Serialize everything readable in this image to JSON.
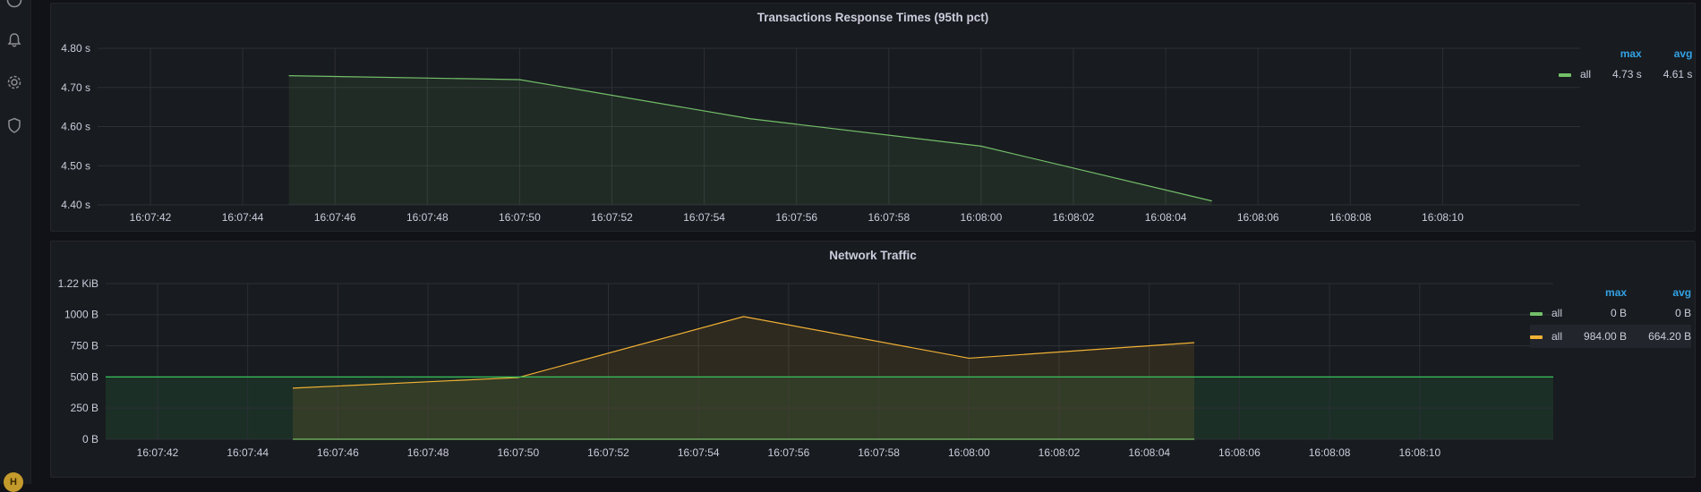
{
  "sidebar": {
    "icons": [
      "help-icon",
      "bell-icon",
      "gear-icon",
      "shield-icon"
    ],
    "avatar_initial": "H"
  },
  "panels": [
    {
      "title": "Transactions Response Times (95th pct)",
      "chart_data": {
        "type": "area",
        "title": "Transactions Response Times (95th pct)",
        "x": [
          "16:07:45",
          "16:07:50",
          "16:07:55",
          "16:08:00",
          "16:08:05"
        ],
        "series": [
          {
            "name": "all",
            "color": "#73bf69",
            "values": [
              4.73,
              4.72,
              4.62,
              4.55,
              4.41
            ]
          }
        ],
        "x_ticks": [
          "16:07:42",
          "16:07:44",
          "16:07:46",
          "16:07:48",
          "16:07:50",
          "16:07:52",
          "16:07:54",
          "16:07:56",
          "16:07:58",
          "16:08:00",
          "16:08:02",
          "16:08:04",
          "16:08:06",
          "16:08:08",
          "16:08:10"
        ],
        "y_ticks": [
          {
            "value": 4.4,
            "label": "4.40 s"
          },
          {
            "value": 4.5,
            "label": "4.50 s"
          },
          {
            "value": 4.6,
            "label": "4.60 s"
          },
          {
            "value": 4.7,
            "label": "4.70 s"
          },
          {
            "value": 4.8,
            "label": "4.80 s"
          }
        ],
        "ylim": [
          4.4,
          4.8
        ],
        "grid": true,
        "legend_placement": "right"
      },
      "legend": {
        "headers": [
          "max",
          "avg"
        ],
        "rows": [
          {
            "series": "all",
            "color": "#73bf69",
            "max": "4.73 s",
            "avg": "4.61 s",
            "highlight": false
          }
        ]
      }
    },
    {
      "title": "Network Traffic",
      "chart_data": {
        "type": "area",
        "title": "Network Traffic",
        "x": [
          "16:07:45",
          "16:07:50",
          "16:07:55",
          "16:08:00",
          "16:08:05"
        ],
        "series": [
          {
            "name": "all",
            "color": "#73bf69",
            "values": [
              0,
              0,
              0,
              0,
              0
            ]
          },
          {
            "name": "all",
            "color": "#f2b134",
            "values": [
              410,
              495,
              984,
              650,
              775
            ]
          }
        ],
        "threshold": {
          "value": 500,
          "color": "#37c45a"
        },
        "x_ticks": [
          "16:07:42",
          "16:07:44",
          "16:07:46",
          "16:07:48",
          "16:07:50",
          "16:07:52",
          "16:07:54",
          "16:07:56",
          "16:07:58",
          "16:08:00",
          "16:08:02",
          "16:08:04",
          "16:08:06",
          "16:08:08",
          "16:08:10"
        ],
        "y_ticks": [
          {
            "value": 0,
            "label": "0 B"
          },
          {
            "value": 250,
            "label": "250 B"
          },
          {
            "value": 500,
            "label": "500 B"
          },
          {
            "value": 750,
            "label": "750 B"
          },
          {
            "value": 1000,
            "label": "1000 B"
          },
          {
            "value": 1249,
            "label": "1.22 KiB"
          }
        ],
        "ylim": [
          0,
          1249
        ],
        "grid": true,
        "legend_placement": "right"
      },
      "legend": {
        "headers": [
          "max",
          "avg"
        ],
        "rows": [
          {
            "series": "all",
            "color": "#73bf69",
            "max": "0 B",
            "avg": "0 B",
            "highlight": false
          },
          {
            "series": "all",
            "color": "#f2b134",
            "max": "984.00 B",
            "avg": "664.20 B",
            "highlight": true
          }
        ]
      }
    }
  ]
}
